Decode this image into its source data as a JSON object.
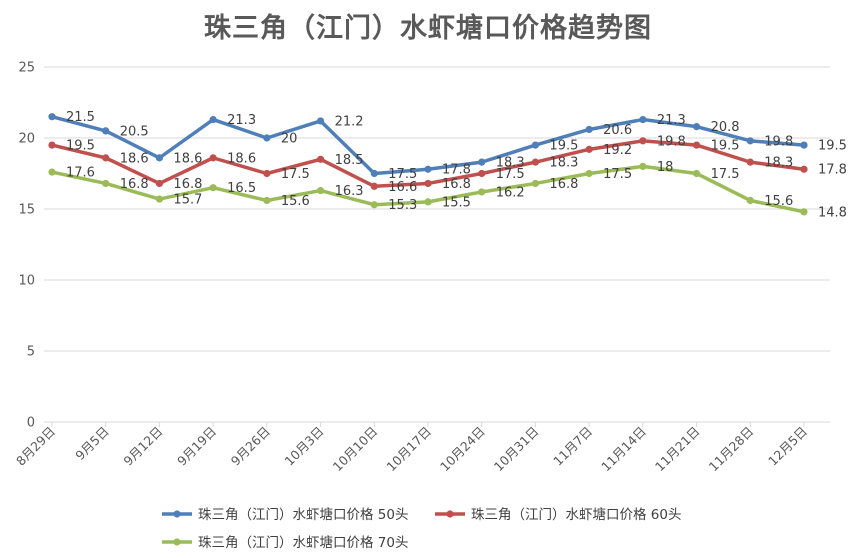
{
  "chart_data": {
    "type": "line",
    "title": "珠三角（江门）水虾塘口价格趋势图",
    "xlabel": "",
    "ylabel": "",
    "categories": [
      "8月29日",
      "9月5日",
      "9月12日",
      "9月19日",
      "9月26日",
      "10月3日",
      "10月10日",
      "10月17日",
      "10月24日",
      "10月31日",
      "11月7日",
      "11月14日",
      "11月21日",
      "11月28日",
      "12月5日"
    ],
    "ylim": [
      0,
      25
    ],
    "yticks": [
      0,
      5,
      10,
      15,
      20,
      25
    ],
    "grid": true,
    "legend_position": "bottom",
    "series": [
      {
        "name": "珠三角（江门）水虾塘口价格 50头",
        "color": "#4f7fb8",
        "values": [
          21.5,
          20.5,
          18.6,
          21.3,
          20,
          21.2,
          17.5,
          17.8,
          18.3,
          19.5,
          20.6,
          21.3,
          20.8,
          19.8,
          19.5
        ]
      },
      {
        "name": "珠三角（江门）水虾塘口价格 60头",
        "color": "#c0504d",
        "values": [
          19.5,
          18.6,
          16.8,
          18.6,
          17.5,
          18.5,
          16.6,
          16.8,
          17.5,
          18.3,
          19.2,
          19.8,
          19.5,
          18.3,
          17.8
        ]
      },
      {
        "name": "珠三角（江门）水虾塘口价格 70头",
        "color": "#9bbb59",
        "values": [
          17.6,
          16.8,
          15.7,
          16.5,
          15.6,
          16.3,
          15.3,
          15.5,
          16.2,
          16.8,
          17.5,
          18,
          17.5,
          15.6,
          14.8
        ]
      }
    ]
  }
}
